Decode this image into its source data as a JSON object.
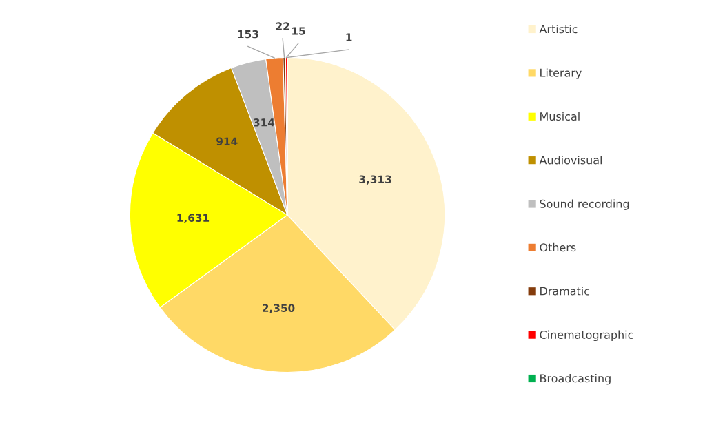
{
  "chart_data": {
    "type": "pie",
    "categories": [
      "Artistic",
      "Literary",
      "Musical",
      "Audiovisual",
      "Sound recording",
      "Others",
      "Dramatic",
      "Cinematographic",
      "Broadcasting"
    ],
    "values": [
      3313,
      2350,
      1631,
      914,
      314,
      153,
      22,
      15,
      1
    ],
    "colors": [
      "#fff2cc",
      "#ffd966",
      "#ffff00",
      "#bf9000",
      "#bfbfbf",
      "#ed7d31",
      "#843c0c",
      "#ff0000",
      "#00b050"
    ],
    "value_labels": [
      "3,313",
      "2,350",
      "1,631",
      "914",
      "314",
      "153",
      "22",
      "15",
      "1"
    ],
    "legend": "right"
  }
}
